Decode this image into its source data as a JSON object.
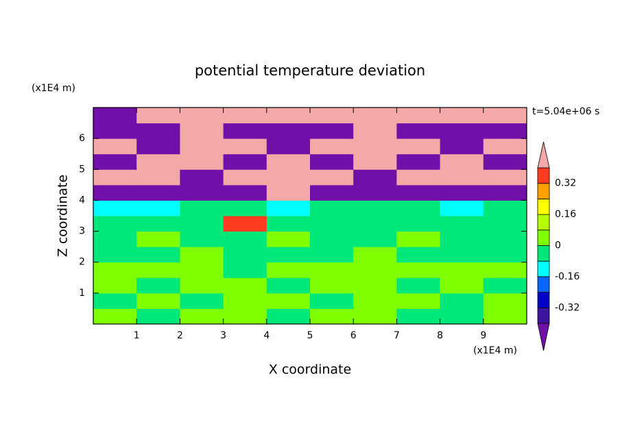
{
  "chart_data": {
    "type": "contour",
    "title": "potential temperature deviation",
    "xlabel": "X coordinate",
    "ylabel": "Z coordinate",
    "x_unit": "(x1E4 m)",
    "y_unit": "(x1E4 m)",
    "annotation": "t=5.04e+06 s",
    "xlim": [
      0,
      10
    ],
    "ylim": [
      0,
      7
    ],
    "xticks": [
      1,
      2,
      3,
      4,
      5,
      6,
      7,
      8,
      9
    ],
    "yticks": [
      1,
      2,
      3,
      4,
      5,
      6
    ],
    "x": [
      0.5,
      1.5,
      2.5,
      3.5,
      4.5,
      5.5,
      6.5,
      7.5,
      8.5,
      9.5
    ],
    "y": [
      0.25,
      0.75,
      1.25,
      1.75,
      2.25,
      2.75,
      3.25,
      3.75,
      4.25,
      4.75,
      5.25,
      5.75,
      6.25,
      6.75
    ],
    "z": [
      [
        0.04,
        -0.04,
        0.04,
        0.04,
        -0.04,
        0.04,
        0.04,
        -0.04,
        -0.04,
        0.04
      ],
      [
        -0.04,
        0.04,
        -0.04,
        0.04,
        0.04,
        -0.04,
        0.04,
        0.04,
        -0.04,
        0.04
      ],
      [
        0.04,
        -0.04,
        0.04,
        0.04,
        -0.04,
        0.04,
        0.04,
        -0.04,
        0.04,
        -0.04
      ],
      [
        0.04,
        0.04,
        0.04,
        -0.04,
        0.04,
        0.04,
        0.04,
        0.04,
        0.04,
        0.04
      ],
      [
        -0.04,
        -0.04,
        0.04,
        -0.04,
        -0.04,
        -0.04,
        0.04,
        -0.04,
        -0.04,
        -0.04
      ],
      [
        -0.04,
        0.04,
        -0.04,
        -0.04,
        0.04,
        -0.04,
        -0.04,
        0.04,
        -0.04,
        -0.04
      ],
      [
        -0.04,
        -0.04,
        -0.04,
        0.36,
        -0.04,
        -0.04,
        -0.04,
        -0.04,
        -0.04,
        -0.04
      ],
      [
        -0.12,
        -0.12,
        -0.04,
        -0.04,
        -0.12,
        -0.04,
        -0.04,
        -0.04,
        -0.12,
        -0.04
      ],
      [
        -0.45,
        -0.45,
        -0.45,
        -0.45,
        0.45,
        -0.45,
        -0.45,
        -0.45,
        -0.45,
        -0.45
      ],
      [
        0.45,
        0.45,
        -0.45,
        0.45,
        0.45,
        0.45,
        -0.45,
        0.45,
        0.45,
        0.45
      ],
      [
        -0.45,
        0.45,
        0.45,
        -0.45,
        0.45,
        -0.45,
        0.45,
        -0.45,
        0.45,
        -0.45
      ],
      [
        0.45,
        -0.45,
        0.45,
        0.45,
        -0.45,
        0.45,
        0.45,
        0.45,
        -0.45,
        0.45
      ],
      [
        -0.45,
        -0.45,
        0.45,
        -0.45,
        -0.45,
        -0.45,
        0.45,
        -0.45,
        -0.45,
        -0.45
      ],
      [
        -0.45,
        0.45,
        0.45,
        0.45,
        0.45,
        0.45,
        0.45,
        0.45,
        0.45,
        0.45
      ]
    ],
    "levels": [
      -0.4,
      -0.32,
      -0.24,
      -0.16,
      -0.08,
      0,
      0.08,
      0.16,
      0.24,
      0.32,
      0.4
    ],
    "colors": [
      "#3c14a0",
      "#0000c8",
      "#0a64ff",
      "#00ffff",
      "#00e87a",
      "#80ff00",
      "#b4ff00",
      "#ffff00",
      "#ffa000",
      "#ff3c1e"
    ],
    "under_color": "#7010a8",
    "over_color": "#f5a8a8",
    "colorbar_ticks": [
      0.32,
      0.16,
      0,
      -0.16,
      -0.32
    ]
  }
}
